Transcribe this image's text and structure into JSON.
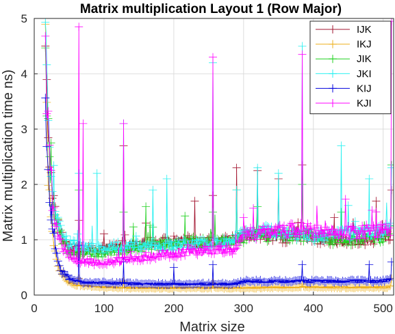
{
  "chart_data": {
    "type": "line",
    "title": "Matrix multiplication Layout 1 (Row Major)",
    "xlabel": "Matrix size",
    "ylabel": "Matrix multiplication time ns)",
    "xlim": [
      0,
      515
    ],
    "ylim": [
      0,
      5
    ],
    "xticks": [
      0,
      100,
      200,
      300,
      400,
      500
    ],
    "yticks": [
      0,
      1,
      2,
      3,
      4,
      5
    ],
    "grid": true,
    "legend_position": "top-right",
    "marker": "plus",
    "x_range": [
      16,
      512
    ],
    "series": [
      {
        "name": "IJK",
        "color": "#a2142f",
        "points": [
          [
            16,
            4.3
          ],
          [
            20,
            3.0
          ],
          [
            25,
            1.9
          ],
          [
            30,
            1.5
          ],
          [
            40,
            1.05
          ],
          [
            50,
            0.88
          ],
          [
            60,
            0.82
          ],
          [
            70,
            0.8
          ],
          [
            90,
            0.82
          ],
          [
            110,
            0.85
          ],
          [
            130,
            0.9
          ],
          [
            150,
            0.93
          ],
          [
            180,
            0.95
          ],
          [
            200,
            0.97
          ],
          [
            220,
            0.97
          ],
          [
            250,
            0.97
          ],
          [
            280,
            0.98
          ],
          [
            290,
            1.0
          ],
          [
            300,
            1.08
          ],
          [
            330,
            1.08
          ],
          [
            360,
            1.05
          ],
          [
            380,
            1.06
          ],
          [
            400,
            1.02
          ],
          [
            420,
            1.02
          ],
          [
            440,
            0.97
          ],
          [
            460,
            1.0
          ],
          [
            480,
            1.02
          ],
          [
            500,
            1.05
          ],
          [
            512,
            1.1
          ]
        ],
        "spikes": [
          [
            64,
            1.35
          ],
          [
            128,
            2.7
          ],
          [
            160,
            1.3
          ],
          [
            230,
            1.7
          ],
          [
            256,
            1.8
          ],
          [
            290,
            2.3
          ],
          [
            320,
            2.25
          ],
          [
            350,
            2.1
          ],
          [
            384,
            2.35
          ],
          [
            430,
            1.4
          ],
          [
            490,
            1.7
          ],
          [
            512,
            1.9
          ]
        ]
      },
      {
        "name": "IKJ",
        "color": "#edb120",
        "points": [
          [
            16,
            4.3
          ],
          [
            20,
            2.2
          ],
          [
            25,
            1.2
          ],
          [
            30,
            0.75
          ],
          [
            35,
            0.5
          ],
          [
            40,
            0.35
          ],
          [
            50,
            0.22
          ],
          [
            60,
            0.18
          ],
          [
            80,
            0.16
          ],
          [
            100,
            0.14
          ],
          [
            150,
            0.13
          ],
          [
            200,
            0.13
          ],
          [
            250,
            0.13
          ],
          [
            300,
            0.13
          ],
          [
            350,
            0.14
          ],
          [
            400,
            0.14
          ],
          [
            450,
            0.14
          ],
          [
            500,
            0.14
          ],
          [
            512,
            0.15
          ]
        ],
        "spikes": [
          [
            64,
            0.3
          ],
          [
            128,
            0.25
          ],
          [
            256,
            0.22
          ],
          [
            384,
            0.2
          ],
          [
            512,
            0.3
          ]
        ]
      },
      {
        "name": "JIK",
        "color": "#21d121",
        "points": [
          [
            16,
            4.2
          ],
          [
            20,
            2.9
          ],
          [
            25,
            1.8
          ],
          [
            30,
            1.4
          ],
          [
            40,
            1.0
          ],
          [
            50,
            0.82
          ],
          [
            60,
            0.78
          ],
          [
            80,
            0.75
          ],
          [
            100,
            0.78
          ],
          [
            130,
            0.82
          ],
          [
            160,
            0.88
          ],
          [
            190,
            0.92
          ],
          [
            220,
            0.95
          ],
          [
            250,
            0.96
          ],
          [
            280,
            0.98
          ],
          [
            290,
            1.0
          ],
          [
            300,
            1.05
          ],
          [
            330,
            1.08
          ],
          [
            360,
            1.08
          ],
          [
            380,
            1.1
          ],
          [
            400,
            1.05
          ],
          [
            420,
            1.02
          ],
          [
            440,
            1.0
          ],
          [
            460,
            1.0
          ],
          [
            480,
            1.02
          ],
          [
            500,
            1.05
          ],
          [
            512,
            1.1
          ]
        ],
        "spikes": [
          [
            64,
            1.9
          ],
          [
            128,
            1.5
          ],
          [
            160,
            1.6
          ],
          [
            256,
            1.5
          ],
          [
            290,
            1.9
          ],
          [
            320,
            1.6
          ],
          [
            384,
            2.0
          ],
          [
            440,
            1.5
          ],
          [
            512,
            2.35
          ]
        ]
      },
      {
        "name": "JKI",
        "color": "#27f0f0",
        "points": [
          [
            16,
            4.6
          ],
          [
            20,
            3.3
          ],
          [
            25,
            2.0
          ],
          [
            30,
            1.5
          ],
          [
            40,
            1.1
          ],
          [
            50,
            0.92
          ],
          [
            60,
            0.88
          ],
          [
            80,
            0.85
          ],
          [
            100,
            0.85
          ],
          [
            130,
            0.88
          ],
          [
            160,
            0.88
          ],
          [
            190,
            0.9
          ],
          [
            220,
            0.92
          ],
          [
            250,
            0.93
          ],
          [
            280,
            0.95
          ],
          [
            290,
            1.0
          ],
          [
            300,
            1.12
          ],
          [
            330,
            1.15
          ],
          [
            360,
            1.1
          ],
          [
            380,
            1.12
          ],
          [
            400,
            1.08
          ],
          [
            420,
            1.08
          ],
          [
            440,
            1.1
          ],
          [
            460,
            1.12
          ],
          [
            480,
            1.12
          ],
          [
            500,
            1.15
          ],
          [
            512,
            1.2
          ]
        ],
        "spikes": [
          [
            64,
            2.2
          ],
          [
            90,
            2.2
          ],
          [
            128,
            3.1
          ],
          [
            170,
            1.9
          ],
          [
            190,
            2.1
          ],
          [
            256,
            4.2
          ],
          [
            290,
            1.9
          ],
          [
            320,
            2.3
          ],
          [
            350,
            2.2
          ],
          [
            384,
            4.5
          ],
          [
            440,
            2.7
          ],
          [
            480,
            2.1
          ],
          [
            512,
            2.3
          ]
        ]
      },
      {
        "name": "KIJ",
        "color": "#0000dd",
        "points": [
          [
            16,
            3.3
          ],
          [
            20,
            2.2
          ],
          [
            25,
            1.3
          ],
          [
            30,
            0.85
          ],
          [
            35,
            0.6
          ],
          [
            40,
            0.42
          ],
          [
            50,
            0.3
          ],
          [
            60,
            0.25
          ],
          [
            70,
            0.23
          ],
          [
            100,
            0.22
          ],
          [
            150,
            0.2
          ],
          [
            200,
            0.2
          ],
          [
            250,
            0.2
          ],
          [
            290,
            0.2
          ],
          [
            300,
            0.25
          ],
          [
            350,
            0.25
          ],
          [
            400,
            0.25
          ],
          [
            450,
            0.25
          ],
          [
            500,
            0.25
          ],
          [
            512,
            0.3
          ]
        ],
        "spikes": [
          [
            64,
            0.9
          ],
          [
            128,
            0.6
          ],
          [
            200,
            0.5
          ],
          [
            256,
            0.55
          ],
          [
            384,
            0.55
          ],
          [
            480,
            0.55
          ],
          [
            512,
            0.6
          ]
        ]
      },
      {
        "name": "KJI",
        "color": "#ff00ff",
        "points": [
          [
            16,
            4.3
          ],
          [
            20,
            3.0
          ],
          [
            25,
            1.8
          ],
          [
            30,
            1.3
          ],
          [
            40,
            0.9
          ],
          [
            50,
            0.72
          ],
          [
            60,
            0.65
          ],
          [
            80,
            0.6
          ],
          [
            100,
            0.6
          ],
          [
            130,
            0.62
          ],
          [
            150,
            0.65
          ],
          [
            160,
            0.68
          ],
          [
            170,
            0.72
          ],
          [
            190,
            0.75
          ],
          [
            220,
            0.78
          ],
          [
            250,
            0.8
          ],
          [
            280,
            0.82
          ],
          [
            290,
            0.85
          ],
          [
            300,
            1.1
          ],
          [
            330,
            1.12
          ],
          [
            360,
            1.15
          ],
          [
            380,
            1.2
          ],
          [
            400,
            1.15
          ],
          [
            420,
            1.15
          ],
          [
            440,
            1.1
          ],
          [
            460,
            1.12
          ],
          [
            480,
            1.15
          ],
          [
            500,
            1.15
          ],
          [
            512,
            1.2
          ]
        ],
        "spikes": [
          [
            64,
            4.85
          ],
          [
            70,
            3.1
          ],
          [
            128,
            3.1
          ],
          [
            256,
            4.3
          ],
          [
            300,
            1.4
          ],
          [
            384,
            4.35
          ],
          [
            512,
            4.95
          ]
        ]
      }
    ]
  }
}
